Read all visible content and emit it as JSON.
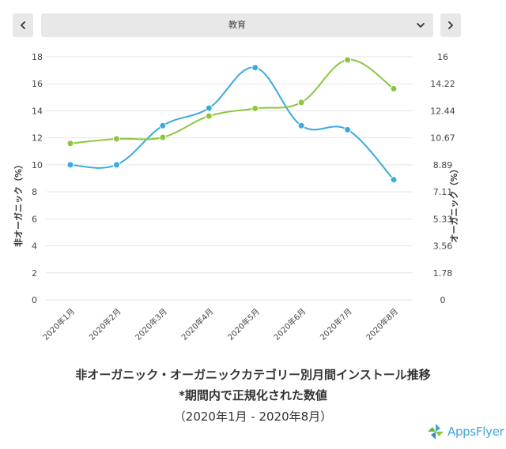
{
  "filter": {
    "selected": "教育",
    "prev_icon": "chevron-left-icon",
    "next_icon": "chevron-right-icon",
    "dropdown_icon": "chevron-down-icon"
  },
  "chart_data": {
    "type": "line",
    "title": "非オーガニック・オーガニックカテゴリー別月間インストール推移",
    "subtitle": "*期間内で正規化された数値",
    "date_range": "（2020年1月 - 2020年8月）",
    "categories": [
      "2020年1月",
      "2020年2月",
      "2020年3月",
      "2020年4月",
      "2020年5月",
      "2020年6月",
      "2020年7月",
      "2020年8月"
    ],
    "ylabel_left": "非オーガニック（%）",
    "ylabel_right": "オーガニック（%）",
    "ylim_left": [
      0,
      18
    ],
    "ylim_right": [
      0,
      16
    ],
    "yticks_left": [
      "0",
      "2",
      "4",
      "6",
      "8",
      "10",
      "12",
      "14",
      "16",
      "18"
    ],
    "yticks_right": [
      "0",
      "1.78",
      "3.56",
      "5.33",
      "7.11",
      "8.89",
      "10.67",
      "12.44",
      "14.22",
      "16"
    ],
    "grid": true,
    "series": [
      {
        "axis": "left",
        "color": "#3aabdf",
        "values": [
          10.0,
          10.0,
          12.9,
          14.2,
          17.2,
          12.9,
          12.6,
          8.9
        ]
      },
      {
        "axis": "right",
        "color": "#8cc63f",
        "values": [
          10.3,
          10.6,
          10.7,
          12.1,
          12.6,
          13.0,
          15.8,
          13.9
        ]
      }
    ]
  },
  "logo": {
    "text": "AppsFlyer"
  }
}
